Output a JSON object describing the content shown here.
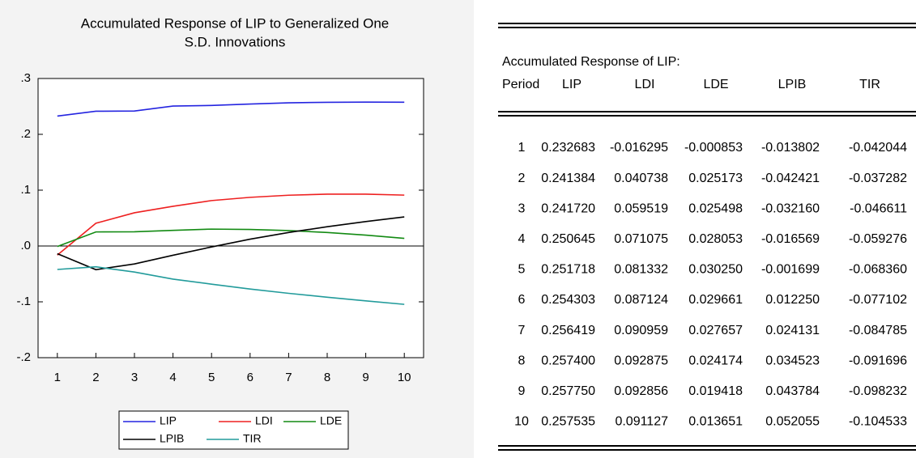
{
  "chart_data": {
    "type": "line",
    "title": "Accumulated Response of LIP to Generalized One",
    "subtitle": "S.D. Innovations",
    "x": [
      1,
      2,
      3,
      4,
      5,
      6,
      7,
      8,
      9,
      10
    ],
    "xlim": [
      0.5,
      10.5
    ],
    "xticks": [
      1,
      2,
      3,
      4,
      5,
      6,
      7,
      8,
      9,
      10
    ],
    "ylim": [
      -0.2,
      0.3
    ],
    "yticks": [
      {
        "value": -0.2,
        "label": "-.2"
      },
      {
        "value": -0.1,
        "label": "-.1"
      },
      {
        "value": 0,
        "label": ".0"
      },
      {
        "value": 0.1,
        "label": ".1"
      },
      {
        "value": 0.2,
        "label": ".2"
      },
      {
        "value": 0.3,
        "label": ".3"
      }
    ],
    "grid": false,
    "series": [
      {
        "name": "LIP",
        "color": "#2424e0",
        "values": [
          0.232683,
          0.241384,
          0.24172,
          0.250645,
          0.251718,
          0.254303,
          0.256419,
          0.2574,
          0.25775,
          0.257535
        ]
      },
      {
        "name": "LDI",
        "color": "#ee2020",
        "values": [
          -0.016295,
          0.040738,
          0.059519,
          0.071075,
          0.081332,
          0.087124,
          0.090959,
          0.092875,
          0.092856,
          0.091127
        ]
      },
      {
        "name": "LDE",
        "color": "#128a12",
        "values": [
          -0.000853,
          0.025173,
          0.025498,
          0.028053,
          0.03025,
          0.029661,
          0.027657,
          0.024174,
          0.019418,
          0.013651
        ]
      },
      {
        "name": "LPIB",
        "color": "#000000",
        "values": [
          -0.013802,
          -0.042421,
          -0.03216,
          -0.016569,
          -0.001699,
          0.01225,
          0.024131,
          0.034523,
          0.043784,
          0.052055
        ]
      },
      {
        "name": "TIR",
        "color": "#229b9b",
        "values": [
          -0.042044,
          -0.037282,
          -0.046611,
          -0.059276,
          -0.06836,
          -0.077102,
          -0.084785,
          -0.091696,
          -0.098232,
          -0.104533
        ]
      }
    ]
  },
  "table": {
    "title": "Accumulated Response of LIP:",
    "header": [
      "Period",
      "LIP",
      "LDI",
      "LDE",
      "LPIB",
      "TIR"
    ],
    "rows": [
      [
        "1",
        "0.232683",
        "-0.016295",
        "-0.000853",
        "-0.013802",
        "-0.042044"
      ],
      [
        "2",
        "0.241384",
        "0.040738",
        "0.025173",
        "-0.042421",
        "-0.037282"
      ],
      [
        "3",
        "0.241720",
        "0.059519",
        "0.025498",
        "-0.032160",
        "-0.046611"
      ],
      [
        "4",
        "0.250645",
        "0.071075",
        "0.028053",
        "-0.016569",
        "-0.059276"
      ],
      [
        "5",
        "0.251718",
        "0.081332",
        "0.030250",
        "-0.001699",
        "-0.068360"
      ],
      [
        "6",
        "0.254303",
        "0.087124",
        "0.029661",
        "0.012250",
        "-0.077102"
      ],
      [
        "7",
        "0.256419",
        "0.090959",
        "0.027657",
        "0.024131",
        "-0.084785"
      ],
      [
        "8",
        "0.257400",
        "0.092875",
        "0.024174",
        "0.034523",
        "-0.091696"
      ],
      [
        "9",
        "0.257750",
        "0.092856",
        "0.019418",
        "0.043784",
        "-0.098232"
      ],
      [
        "10",
        "0.257535",
        "0.091127",
        "0.013651",
        "0.052055",
        "-0.104533"
      ]
    ]
  }
}
